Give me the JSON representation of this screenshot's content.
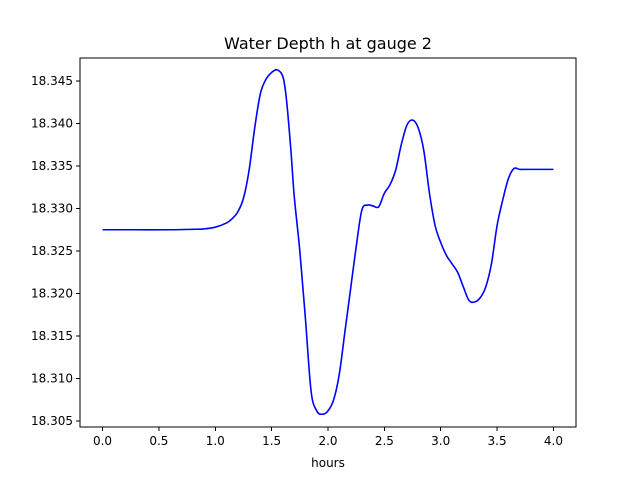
{
  "chart_data": {
    "type": "line",
    "title": "Water Depth h at gauge 2",
    "xlabel": "hours",
    "ylabel": "",
    "xlim": [
      -0.2,
      4.2
    ],
    "ylim": [
      18.3043,
      18.3477
    ],
    "xticks": [
      0.0,
      0.5,
      1.0,
      1.5,
      2.0,
      2.5,
      3.0,
      3.5,
      4.0
    ],
    "xtick_labels": [
      "0.0",
      "0.5",
      "1.0",
      "1.5",
      "2.0",
      "2.5",
      "3.0",
      "3.5",
      "4.0"
    ],
    "yticks": [
      18.305,
      18.31,
      18.315,
      18.32,
      18.325,
      18.33,
      18.335,
      18.34,
      18.345
    ],
    "ytick_labels": [
      "18.305",
      "18.310",
      "18.315",
      "18.320",
      "18.325",
      "18.330",
      "18.335",
      "18.340",
      "18.345"
    ],
    "grid": false,
    "series": [
      {
        "color": "#0000ff",
        "x": [
          0.0,
          0.3,
          0.6,
          0.8,
          0.9,
          1.0,
          1.1,
          1.15,
          1.2,
          1.25,
          1.3,
          1.35,
          1.4,
          1.45,
          1.5,
          1.55,
          1.6,
          1.63,
          1.67,
          1.7,
          1.75,
          1.8,
          1.85,
          1.9,
          1.95,
          2.0,
          2.05,
          2.1,
          2.15,
          2.2,
          2.25,
          2.3,
          2.35,
          2.4,
          2.45,
          2.5,
          2.55,
          2.6,
          2.65,
          2.7,
          2.75,
          2.8,
          2.85,
          2.9,
          2.95,
          3.0,
          3.05,
          3.1,
          3.15,
          3.2,
          3.25,
          3.3,
          3.35,
          3.4,
          3.45,
          3.5,
          3.55,
          3.6,
          3.65,
          3.7,
          3.75,
          3.8,
          3.85,
          3.9,
          3.95,
          4.0
        ],
        "y": [
          18.3275,
          18.3275,
          18.3275,
          18.32755,
          18.3276,
          18.3278,
          18.3283,
          18.3288,
          18.3296,
          18.3312,
          18.3345,
          18.3395,
          18.3435,
          18.3452,
          18.346,
          18.3463,
          18.3455,
          18.343,
          18.337,
          18.3315,
          18.325,
          18.317,
          18.3085,
          18.3062,
          18.3058,
          18.3062,
          18.3075,
          18.3105,
          18.3155,
          18.3205,
          18.3255,
          18.3298,
          18.3304,
          18.3303,
          18.3302,
          18.3318,
          18.3328,
          18.3345,
          18.3375,
          18.3398,
          18.3404,
          18.3395,
          18.3368,
          18.3318,
          18.328,
          18.326,
          18.3245,
          18.3235,
          18.3225,
          18.3208,
          18.3192,
          18.319,
          18.3195,
          18.3208,
          18.3235,
          18.328,
          18.331,
          18.3335,
          18.3347,
          18.3346,
          18.3346,
          18.3346,
          18.3346,
          18.3346,
          18.3346,
          18.3346
        ]
      }
    ]
  }
}
